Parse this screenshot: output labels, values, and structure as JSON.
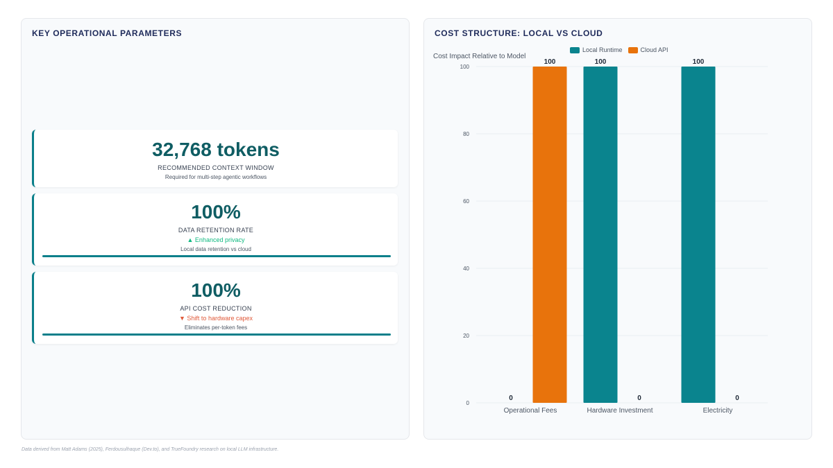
{
  "left": {
    "title": "KEY OPERATIONAL PARAMETERS",
    "metrics": [
      {
        "value": "32,768 tokens",
        "label": "RECOMMENDED CONTEXT WINDOW",
        "trend": "",
        "description": "Required for multi-step agentic workflows"
      },
      {
        "value": "100%",
        "label": "DATA RETENTION RATE",
        "trend": "▲ Enhanced privacy",
        "trend_direction": "up",
        "description": "Local data retention vs cloud",
        "progress": 1.0
      },
      {
        "value": "100%",
        "label": "API COST REDUCTION",
        "trend": "▼ Shift to hardware capex",
        "trend_direction": "down",
        "description": "Eliminates per-token fees",
        "progress": 1.0
      }
    ]
  },
  "right": {
    "title": "COST STRUCTURE: LOCAL VS CLOUD"
  },
  "chart_data": {
    "type": "bar",
    "title": "",
    "ylabel": "Cost Impact Relative to Model",
    "xlabel": "",
    "categories": [
      "Operational Fees",
      "Hardware Investment",
      "Electricity"
    ],
    "series": [
      {
        "name": "Local Runtime",
        "color": "#0a848e",
        "values": [
          0,
          100,
          100
        ]
      },
      {
        "name": "Cloud API",
        "color": "#e8730c",
        "values": [
          100,
          0,
          0
        ]
      }
    ],
    "ylim": [
      0,
      100
    ],
    "yticks": [
      0,
      20,
      40,
      60,
      80,
      100
    ],
    "grid": true,
    "legend": "top-center",
    "data_labels": true
  },
  "footer": "Data derived from Matt Adams (2025), Ferdousulhaque (Dev.to), and TrueFoundry research on local LLM infrastructure."
}
